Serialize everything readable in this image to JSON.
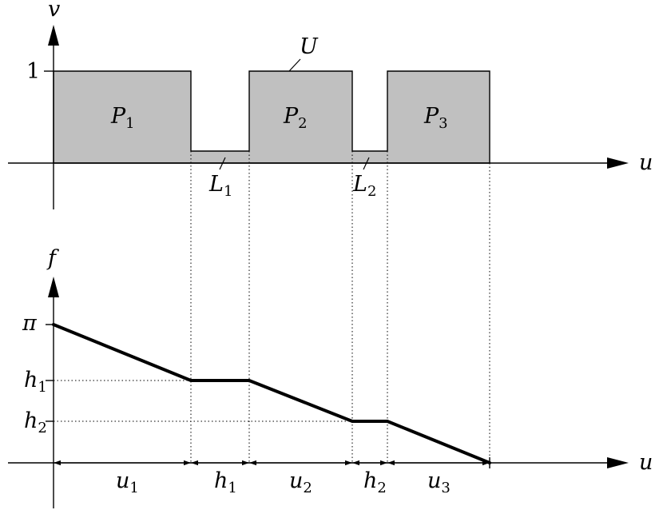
{
  "top": {
    "v_label": "v",
    "u_label": "u",
    "one_label": "1",
    "U_label": "U",
    "regions": [
      {
        "main": "P",
        "sub": "1"
      },
      {
        "main": "P",
        "sub": "2"
      },
      {
        "main": "P",
        "sub": "3"
      }
    ],
    "links": [
      {
        "main": "L",
        "sub": "1"
      },
      {
        "main": "L",
        "sub": "2"
      }
    ]
  },
  "bottom": {
    "f_label": "f",
    "u_label": "u",
    "levels": [
      {
        "main": "π",
        "sub": ""
      },
      {
        "main": "h",
        "sub": "1"
      },
      {
        "main": "h",
        "sub": "2"
      }
    ],
    "intervals": [
      {
        "main": "u",
        "sub": "1"
      },
      {
        "main": "h",
        "sub": "1"
      },
      {
        "main": "u",
        "sub": "2"
      },
      {
        "main": "h",
        "sub": "2"
      },
      {
        "main": "u",
        "sub": "3"
      }
    ]
  },
  "colors": {
    "fill": "#c0c0c0",
    "stroke": "#000000"
  }
}
